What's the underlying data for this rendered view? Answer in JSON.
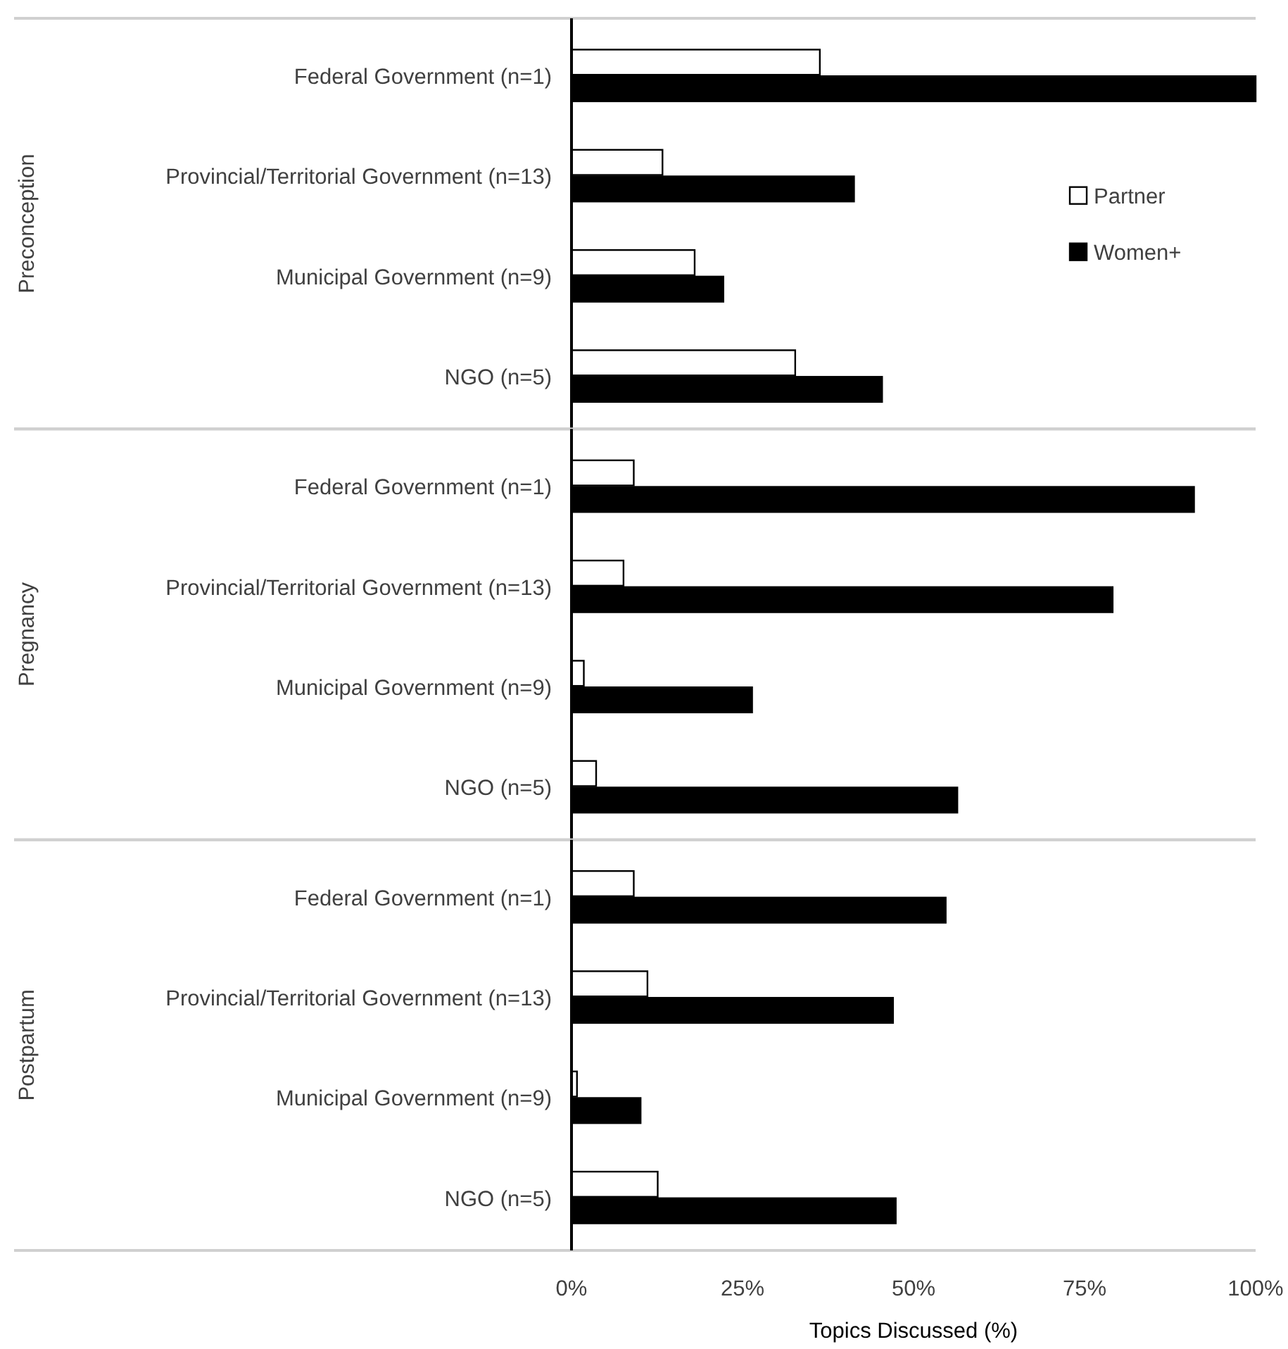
{
  "chart_data": [
    {
      "type": "bar",
      "orientation": "horizontal",
      "ylabel": "Preconception",
      "categories": [
        "Federal Government (n=1)",
        "Provincial/Territorial Government (n=13)",
        "Municipal Government (n=9)",
        "NGO (n=5)"
      ],
      "series": [
        {
          "name": "Partner",
          "color": "#ffffff",
          "values": [
            36.3,
            13.3,
            18.0,
            32.7
          ]
        },
        {
          "name": "Women+",
          "color": "#000000",
          "values": [
            100,
            41.3,
            22.2,
            45.4
          ]
        }
      ],
      "xlim": [
        0,
        100
      ],
      "tick_labels": "y",
      "legend": "right"
    },
    {
      "type": "bar",
      "orientation": "horizontal",
      "ylabel": "Pregnancy",
      "categories": [
        "Federal Government (n=1)",
        "Provincial/Territorial Government (n=13)",
        "Municipal Government (n=9)",
        "NGO (n=5)"
      ],
      "series": [
        {
          "color": "#ffffff",
          "values": [
            9.1,
            7.6,
            1.8,
            3.6
          ]
        },
        {
          "color": "#000000",
          "values": [
            91.0,
            79.1,
            26.4,
            56.4
          ]
        }
      ],
      "xlim": [
        0,
        100
      ],
      "tick_labels": "y"
    },
    {
      "type": "bar",
      "orientation": "horizontal",
      "ylabel": "Postpartum",
      "xlabel": "Topics Discussed (%)",
      "categories": [
        "Federal Government (n=1)",
        "Provincial/Territorial Government (n=13)",
        "Municipal Government (n=9)",
        "NGO (n=5)"
      ],
      "series": [
        {
          "color": "#ffffff",
          "values": [
            9.1,
            11.1,
            0.8,
            12.6
          ]
        },
        {
          "color": "#000000",
          "values": [
            54.7,
            47.0,
            10.1,
            47.4
          ]
        }
      ],
      "xlim": [
        0,
        100
      ],
      "xticks": [
        {
          "value": 0,
          "label": "0%"
        },
        {
          "value": 25,
          "label": "25%"
        },
        {
          "value": 50,
          "label": "50%"
        },
        {
          "value": 75,
          "label": "75%"
        },
        {
          "value": 100,
          "label": "100%"
        }
      ]
    }
  ]
}
